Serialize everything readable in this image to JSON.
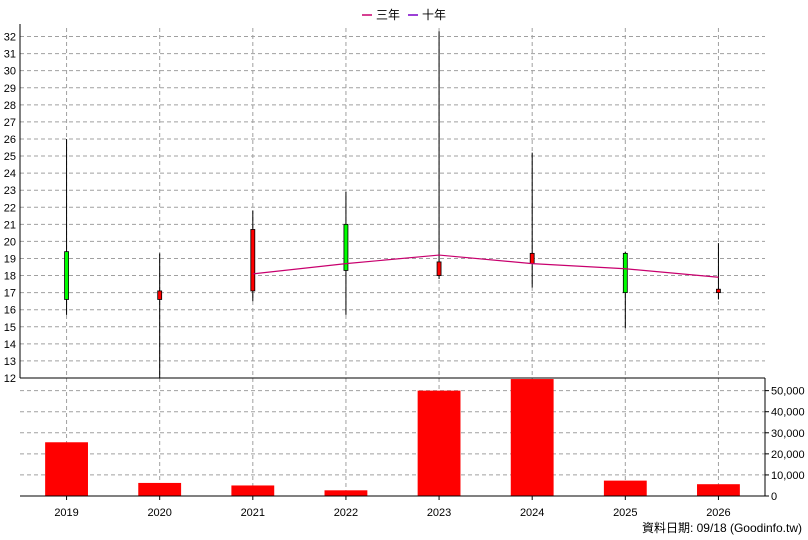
{
  "legend": [
    {
      "label": "三年",
      "color": "#c8006e"
    },
    {
      "label": "十年",
      "color": "#7a00c8"
    }
  ],
  "footer": "資料日期: 09/18  (Goodinfo.tw)",
  "colors": {
    "up": "#00ff00",
    "down": "#ff0000",
    "volume": "#ff0000",
    "ma3": "#c8006e",
    "wick": "#000000",
    "grid": "#a0a0a0"
  },
  "chart_data": [
    {
      "type": "candlestick",
      "categories": [
        "2019",
        "2020",
        "2021",
        "2022",
        "2023",
        "2024",
        "2025",
        "2026"
      ],
      "ylim": [
        12,
        32.5
      ],
      "yticks": [
        12,
        13,
        14,
        15,
        16,
        17,
        18,
        19,
        20,
        21,
        22,
        23,
        24,
        25,
        26,
        27,
        28,
        29,
        30,
        31,
        32
      ],
      "grid": true,
      "candles": [
        {
          "open": 16.6,
          "close": 19.4,
          "high": 26.0,
          "low": 15.7
        },
        {
          "open": 17.1,
          "close": 16.6,
          "high": 19.3,
          "low": 12.0
        },
        {
          "open": 20.7,
          "close": 17.1,
          "high": 21.8,
          "low": 16.5
        },
        {
          "open": 18.3,
          "close": 21.0,
          "high": 22.9,
          "low": 15.7
        },
        {
          "open": 18.8,
          "close": 18.0,
          "high": 32.3,
          "low": 17.8
        },
        {
          "open": 19.3,
          "close": 18.7,
          "high": 25.2,
          "low": 17.3
        },
        {
          "open": 17.0,
          "close": 19.3,
          "high": 19.4,
          "low": 14.9
        },
        {
          "open": 17.2,
          "close": 17.0,
          "high": 19.9,
          "low": 16.6
        }
      ],
      "series": [
        {
          "name": "三年",
          "values": [
            null,
            null,
            18.1,
            18.7,
            19.2,
            18.7,
            18.4,
            17.9
          ]
        }
      ]
    },
    {
      "type": "bar",
      "categories": [
        "2019",
        "2020",
        "2021",
        "2022",
        "2023",
        "2024",
        "2025",
        "2026"
      ],
      "values": [
        25500,
        6200,
        5000,
        2700,
        50000,
        55500,
        7300,
        5600
      ],
      "ylim": [
        0,
        56000
      ],
      "yticks": [
        0,
        10000,
        20000,
        30000,
        40000,
        50000
      ],
      "ytick_labels": [
        "0",
        "10,000",
        "20,000",
        "30,000",
        "40,000",
        "50,000"
      ],
      "grid": true
    }
  ]
}
